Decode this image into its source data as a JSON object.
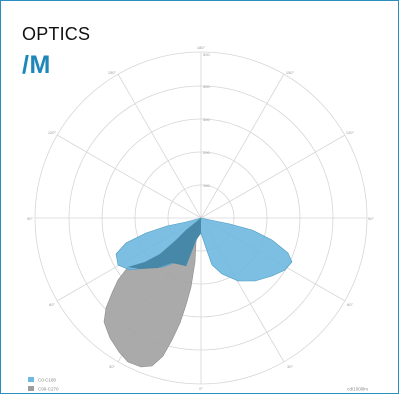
{
  "header": {
    "title": "OPTICS",
    "code": "/M"
  },
  "colors": {
    "frame": "#2a8fbf",
    "code": "#1e86b8",
    "c0_c180": "#6fb8df",
    "c90_c270": "#9e9e9e",
    "overlap": "#3f7f9f"
  },
  "diagram": {
    "angle_labels": [
      "180°",
      "150°",
      "120°",
      "90°",
      "60°",
      "30°",
      "0°",
      "30°",
      "60°",
      "90°",
      "120°",
      "150°"
    ],
    "ring_labels": [
      "100",
      "200",
      "300",
      "400",
      "500"
    ],
    "legend": [
      {
        "label": "C0-C180",
        "color": "#6fb8df"
      },
      {
        "label": "C90-C270",
        "color": "#9e9e9e"
      }
    ],
    "footer": "cd/1000lm"
  }
}
